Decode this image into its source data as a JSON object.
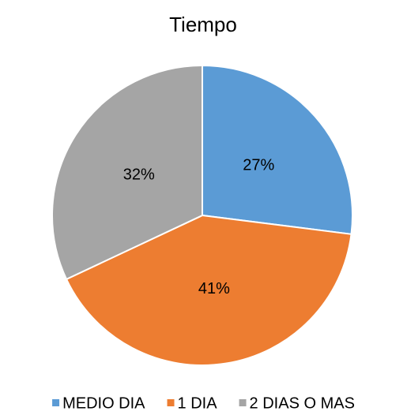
{
  "chart_data": {
    "type": "pie",
    "title": "Tiempo",
    "categories": [
      "MEDIO DIA",
      "1 DIA",
      "2 DIAS O MAS"
    ],
    "values": [
      27,
      41,
      32
    ],
    "value_labels": [
      "27%",
      "41%",
      "32%"
    ],
    "colors": [
      "#5b9bd5",
      "#ed7d31",
      "#a5a5a5"
    ],
    "legend": "bottom"
  }
}
